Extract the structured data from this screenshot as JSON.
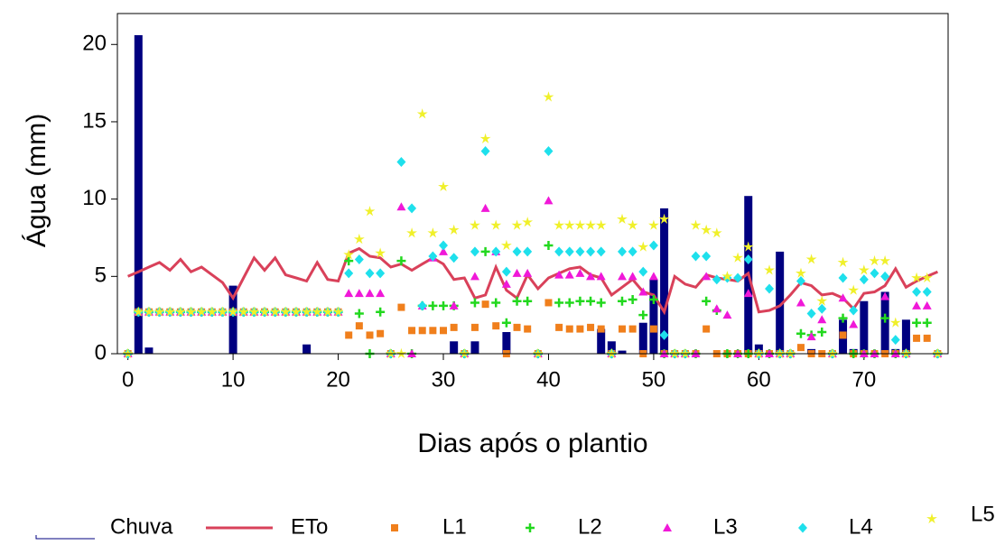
{
  "chart_data": {
    "type": "combo",
    "x_label": "Dias após o plantio",
    "y_label": "Água (mm)",
    "xlim": [
      -1,
      78
    ],
    "ylim": [
      0,
      22
    ],
    "xticks": [
      0,
      10,
      20,
      30,
      40,
      50,
      60,
      70
    ],
    "yticks": [
      0,
      5,
      10,
      15,
      20
    ],
    "x": [
      0,
      1,
      2,
      3,
      4,
      5,
      6,
      7,
      8,
      9,
      10,
      11,
      12,
      13,
      14,
      15,
      16,
      17,
      18,
      19,
      20,
      21,
      22,
      23,
      24,
      25,
      26,
      27,
      28,
      29,
      30,
      31,
      32,
      33,
      34,
      35,
      36,
      37,
      38,
      39,
      40,
      41,
      42,
      43,
      44,
      45,
      46,
      47,
      48,
      49,
      50,
      51,
      52,
      53,
      54,
      55,
      56,
      57,
      58,
      59,
      60,
      61,
      62,
      63,
      64,
      65,
      66,
      67,
      68,
      69,
      70,
      71,
      72,
      73,
      74,
      75,
      76,
      77
    ],
    "series": [
      {
        "name": "Chuva",
        "type": "bar",
        "color": "#000080",
        "values": [
          0,
          20.6,
          0.4,
          0,
          0,
          0,
          0,
          0,
          0,
          0,
          4.4,
          0,
          0,
          0,
          0,
          0,
          0,
          0.6,
          0,
          0,
          0,
          0,
          0,
          0,
          0,
          0,
          0,
          0,
          0,
          0,
          0,
          0.8,
          0,
          0.8,
          0,
          0,
          1.4,
          0,
          0,
          0,
          0,
          0,
          0,
          0,
          0,
          1.6,
          0.8,
          0.2,
          0,
          2.0,
          4.8,
          9.4,
          0,
          0,
          0,
          0,
          0,
          0,
          0,
          10.2,
          0.6,
          0,
          6.6,
          0,
          0,
          0.3,
          0,
          0,
          2.2,
          0.3,
          3.4,
          0,
          4.0,
          0.3,
          2.2,
          0,
          0,
          0
        ]
      },
      {
        "name": "ETo",
        "type": "line",
        "color": "#d9415a",
        "values": [
          5.0,
          5.3,
          5.6,
          5.9,
          5.4,
          6.1,
          5.3,
          5.6,
          5.1,
          4.6,
          3.6,
          4.9,
          6.2,
          5.4,
          6.2,
          5.1,
          4.9,
          4.7,
          5.9,
          4.8,
          4.7,
          6.5,
          6.8,
          6.3,
          6.2,
          5.6,
          5.8,
          5.4,
          5.8,
          6.2,
          5.8,
          4.8,
          4.9,
          3.6,
          3.8,
          5.6,
          4.1,
          3.6,
          5.1,
          4.2,
          4.9,
          5.2,
          5.5,
          5.6,
          5.1,
          4.9,
          3.8,
          4.3,
          4.8,
          4.0,
          3.8,
          2.7,
          5.0,
          4.5,
          4.3,
          5.1,
          4.9,
          4.8,
          4.7,
          5.2,
          2.7,
          2.8,
          3.1,
          3.8,
          4.6,
          4.4,
          3.8,
          3.9,
          3.6,
          2.9,
          3.9,
          4.0,
          4.4,
          5.5,
          4.3,
          4.7,
          5.0,
          5.3
        ]
      },
      {
        "name": "L1",
        "type": "scatter",
        "marker": "square",
        "color": "#f07f1c",
        "values": [
          0,
          2.7,
          2.7,
          2.7,
          2.7,
          2.7,
          2.7,
          2.7,
          2.7,
          2.7,
          2.7,
          2.7,
          2.7,
          2.7,
          2.7,
          2.7,
          2.7,
          2.7,
          2.7,
          2.7,
          2.7,
          1.2,
          1.8,
          1.2,
          1.3,
          0,
          3.0,
          1.5,
          1.5,
          1.5,
          1.5,
          1.7,
          0,
          1.7,
          3.2,
          1.8,
          0,
          1.7,
          1.6,
          0,
          3.3,
          1.7,
          1.6,
          1.6,
          1.7,
          1.6,
          0,
          1.6,
          1.6,
          0,
          1.6,
          0,
          0,
          0,
          0,
          1.6,
          0,
          0,
          0,
          0,
          0,
          0,
          0,
          0,
          0.4,
          0,
          0,
          0,
          1.2,
          0,
          0,
          0,
          0,
          0,
          0,
          1.0,
          1.0,
          0
        ]
      },
      {
        "name": "L2",
        "type": "scatter",
        "marker": "plus",
        "color": "#22d81e",
        "values": [
          0,
          2.7,
          2.7,
          2.7,
          2.7,
          2.7,
          2.7,
          2.7,
          2.7,
          2.7,
          2.7,
          2.7,
          2.7,
          2.7,
          2.7,
          2.7,
          2.7,
          2.7,
          2.7,
          2.7,
          2.7,
          6.0,
          2.6,
          0,
          2.7,
          0,
          6.0,
          0,
          3.1,
          3.1,
          3.1,
          3.1,
          0,
          3.3,
          6.6,
          3.3,
          2.0,
          3.4,
          3.4,
          0,
          7.0,
          3.3,
          3.3,
          3.4,
          3.4,
          3.3,
          0,
          3.4,
          3.5,
          2.5,
          3.5,
          0,
          0,
          0,
          0,
          3.4,
          2.8,
          0,
          0,
          0,
          0,
          0,
          0,
          0,
          1.3,
          1.2,
          1.4,
          0,
          2.3,
          0,
          0,
          0,
          2.3,
          0,
          0,
          2.0,
          2.0,
          0
        ]
      },
      {
        "name": "L3",
        "type": "scatter",
        "marker": "triangle",
        "color": "#f018d8",
        "values": [
          0,
          2.7,
          2.7,
          2.7,
          2.7,
          2.7,
          2.7,
          2.7,
          2.7,
          2.7,
          2.7,
          2.7,
          2.7,
          2.7,
          2.7,
          2.7,
          2.7,
          2.7,
          2.7,
          2.7,
          2.7,
          3.9,
          3.9,
          3.9,
          3.9,
          0,
          9.5,
          0,
          3.1,
          6.2,
          6.6,
          3.1,
          0,
          5.0,
          9.4,
          6.6,
          4.5,
          5.2,
          5.2,
          0,
          9.9,
          5.1,
          5.1,
          5.2,
          5.0,
          5.0,
          0,
          5.0,
          5.0,
          4.0,
          5.0,
          0,
          0,
          0,
          0,
          5.0,
          2.9,
          2.5,
          0,
          3.9,
          0,
          0,
          0,
          0,
          3.3,
          1.1,
          2.2,
          0,
          3.6,
          1.9,
          0,
          0,
          3.7,
          0,
          0,
          3.1,
          3.1,
          0
        ]
      },
      {
        "name": "L4",
        "type": "scatter",
        "marker": "diamond",
        "color": "#1ee0ec",
        "values": [
          0,
          2.7,
          2.7,
          2.7,
          2.7,
          2.7,
          2.7,
          2.7,
          2.7,
          2.7,
          2.7,
          2.7,
          2.7,
          2.7,
          2.7,
          2.7,
          2.7,
          2.7,
          2.7,
          2.7,
          2.7,
          5.2,
          6.1,
          5.2,
          5.2,
          0,
          12.4,
          9.4,
          3.1,
          6.3,
          7.0,
          6.2,
          0,
          6.6,
          13.1,
          6.6,
          5.3,
          6.6,
          6.6,
          0,
          13.1,
          6.6,
          6.6,
          6.6,
          6.6,
          6.6,
          0,
          6.6,
          6.6,
          5.3,
          7.0,
          1.2,
          0,
          0,
          6.3,
          6.3,
          4.8,
          4.9,
          4.9,
          6.1,
          0,
          4.2,
          0,
          0,
          4.7,
          2.6,
          2.9,
          0,
          4.9,
          2.8,
          4.8,
          5.2,
          5.0,
          0.9,
          0,
          4.0,
          4.0,
          0
        ]
      },
      {
        "name": "L5",
        "type": "scatter",
        "marker": "star",
        "color": "#f0f02a",
        "values": [
          0,
          2.7,
          2.7,
          2.7,
          2.7,
          2.7,
          2.7,
          2.7,
          2.7,
          2.7,
          2.7,
          2.7,
          2.7,
          2.7,
          2.7,
          2.7,
          2.7,
          2.7,
          2.7,
          2.7,
          2.7,
          6.4,
          7.4,
          9.2,
          6.5,
          0,
          0,
          7.8,
          15.5,
          7.8,
          10.8,
          8.0,
          0,
          8.3,
          13.9,
          8.3,
          7.0,
          8.3,
          8.5,
          0,
          16.6,
          8.3,
          8.3,
          8.3,
          8.3,
          8.3,
          0,
          8.7,
          8.3,
          6.9,
          8.3,
          8.7,
          0,
          0,
          8.3,
          8.0,
          7.8,
          5.0,
          6.2,
          6.9,
          0,
          5.4,
          0,
          0,
          5.2,
          6.1,
          3.4,
          0,
          5.9,
          4.1,
          5.4,
          6.0,
          6.0,
          2.0,
          0,
          4.9,
          4.9,
          0
        ]
      }
    ]
  }
}
